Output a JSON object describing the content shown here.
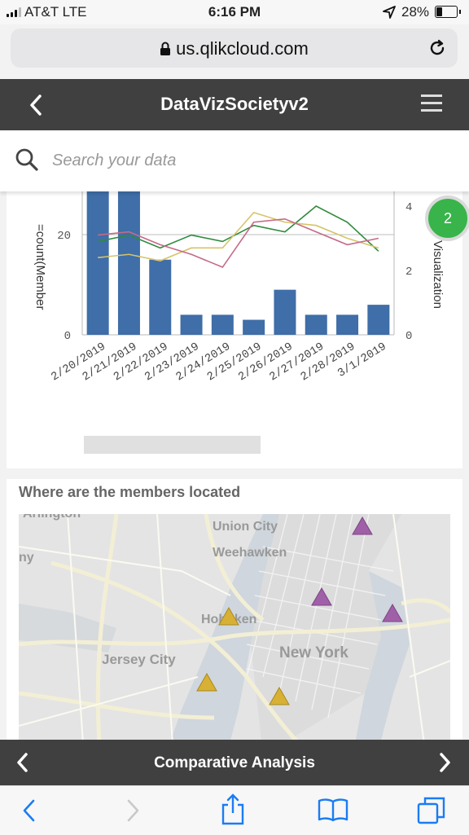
{
  "status_bar": {
    "carrier": "AT&T  LTE",
    "time": "6:16 PM",
    "battery": "28%"
  },
  "browser": {
    "url": "us.qlikcloud.com"
  },
  "app": {
    "title": "DataVizSocietyv2"
  },
  "search": {
    "placeholder": "Search your data"
  },
  "badge": {
    "count": "2"
  },
  "chart_data": {
    "type": "bar",
    "categories": [
      "2/20/2019",
      "2/21/2019",
      "2/22/2019",
      "2/23/2019",
      "2/24/2019",
      "2/25/2019",
      "2/26/2019",
      "2/27/2019",
      "2/28/2019",
      "3/1/2019"
    ],
    "values": [
      30,
      30,
      15,
      4,
      4,
      3,
      9,
      4,
      4,
      6
    ],
    "ylabel": "=count(Member",
    "y2label": "Visualization",
    "left_ticks": [
      "0",
      "20"
    ],
    "right_ticks": [
      "0",
      "2",
      "4"
    ],
    "ylim": [
      0,
      28
    ],
    "y2lim": [
      0,
      4.2
    ],
    "bar_color": "#3f6ea8",
    "series": [
      {
        "color": "#2e8b3e",
        "values": [
          2.9,
          3.1,
          2.7,
          3.1,
          2.9,
          3.4,
          3.2,
          4.0,
          3.5,
          2.6
        ]
      },
      {
        "color": "#d5c46a",
        "values": [
          2.4,
          2.5,
          2.3,
          2.7,
          2.7,
          3.8,
          3.5,
          3.4,
          3.0,
          2.7
        ]
      },
      {
        "color": "#c56a88",
        "values": [
          3.1,
          3.2,
          2.8,
          2.5,
          2.1,
          3.5,
          3.6,
          3.2,
          2.8,
          3.0
        ]
      }
    ]
  },
  "map": {
    "title": "Where are the members located",
    "labels": [
      "Arlington",
      "Union City",
      "Weehawken",
      "Hoboken",
      "Jersey City",
      "New York",
      "ny"
    ]
  },
  "sheet": {
    "title": "Comparative Analysis"
  }
}
